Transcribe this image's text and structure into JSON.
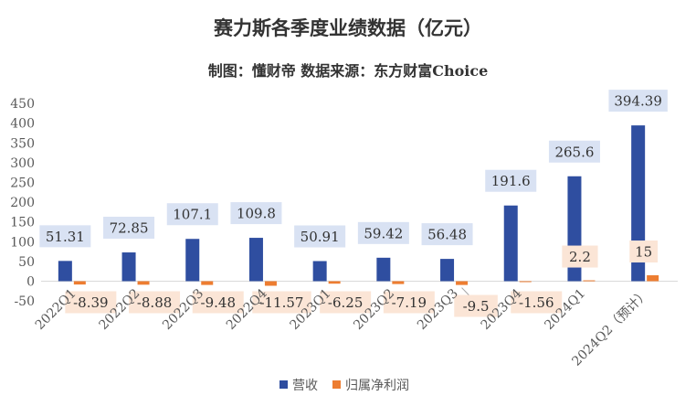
{
  "title": "赛力斯各季度业绩数据（亿元）",
  "subtitle": "制图：懂财帝   数据来源：东方财富Choice",
  "colors": {
    "revenue": "#2f4ea0",
    "profit": "#ed7d31",
    "revenue_label_bg": "#d9e2f3",
    "profit_label_bg": "#fbe5d6",
    "axis_text": "#595959",
    "gridline": "#d9d9d9"
  },
  "chart_data": {
    "type": "bar",
    "title": "赛力斯各季度业绩数据（亿元）",
    "subtitle": "制图：懂财帝   数据来源：东方财富Choice",
    "categories": [
      "2022Q1",
      "2022Q2",
      "2022Q3",
      "2022Q4",
      "2023Q1",
      "2023Q2",
      "2023Q3",
      "2023Q4",
      "2024Q1",
      "2024Q2（预计）"
    ],
    "series": [
      {
        "name": "营收",
        "values": [
          51.31,
          72.85,
          107.1,
          109.8,
          50.91,
          59.42,
          56.48,
          191.6,
          265.6,
          394.39
        ]
      },
      {
        "name": "归属净利润",
        "values": [
          -8.39,
          -8.88,
          -9.48,
          -11.57,
          -6.25,
          -7.19,
          -9.5,
          -1.56,
          2.2,
          15
        ]
      }
    ],
    "yticks": [
      "-50",
      "0",
      "50",
      "100",
      "150",
      "200",
      "250",
      "300",
      "350",
      "400",
      "450"
    ],
    "ylim": [
      -50,
      450
    ],
    "legend": "bottom",
    "grid": false
  }
}
